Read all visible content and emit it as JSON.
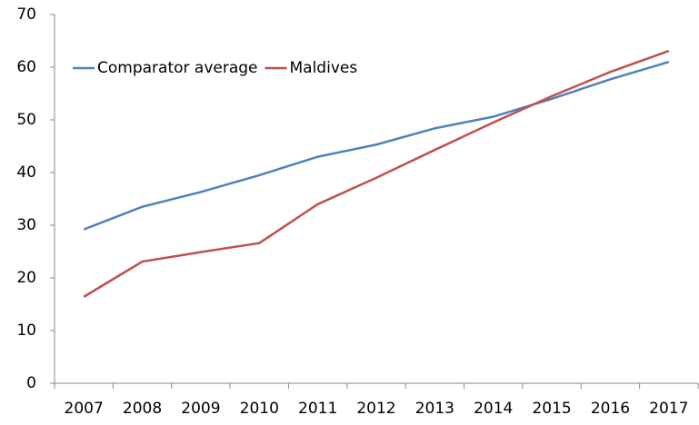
{
  "chart_data": {
    "type": "line",
    "categories": [
      "2007",
      "2008",
      "2009",
      "2010",
      "2011",
      "2012",
      "2013",
      "2014",
      "2015",
      "2016",
      "2017"
    ],
    "series": [
      {
        "name": "Comparator average",
        "color": "#4f81bd",
        "values": [
          29.2,
          33.5,
          36.3,
          39.5,
          43.0,
          45.3,
          48.4,
          50.6,
          54.0,
          57.7,
          61.0
        ]
      },
      {
        "name": "Maldives",
        "color": "#c0504d",
        "values": [
          16.4,
          23.1,
          24.9,
          26.6,
          34.0,
          39.0,
          44.3,
          49.5,
          54.5,
          59.1,
          63.1
        ]
      }
    ],
    "ylim": [
      0,
      70
    ],
    "yticks": [
      0,
      10,
      20,
      30,
      40,
      50,
      60,
      70
    ],
    "grid": false,
    "legend": "upper left"
  }
}
